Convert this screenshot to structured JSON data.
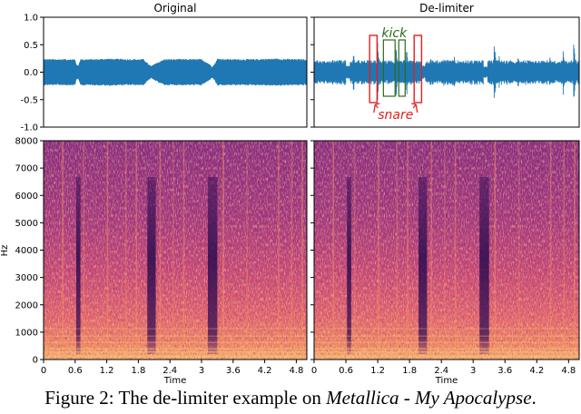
{
  "chart_data": [
    {
      "type": "line",
      "panel": "waveform-original",
      "title": "Original",
      "ylim": [
        -1.0,
        1.0
      ],
      "yticks": [
        "1.0",
        "0.5",
        "0.0",
        "-0.5",
        "-1.0"
      ],
      "ytick_values": [
        1.0,
        0.5,
        0.0,
        -0.5,
        -1.0
      ],
      "xlim": [
        0,
        5.0
      ],
      "series_color": "#1f77b4",
      "envelope": {
        "x": [
          0,
          0.6,
          0.62,
          0.66,
          0.7,
          1.0,
          1.2,
          1.6,
          1.9,
          2.0,
          2.05,
          2.1,
          2.3,
          2.6,
          3.0,
          3.15,
          3.2,
          3.25,
          3.3,
          3.6,
          4.0,
          4.4,
          4.8,
          5.0
        ],
        "upper": [
          0.24,
          0.24,
          0.14,
          0.12,
          0.24,
          0.24,
          0.25,
          0.24,
          0.24,
          0.14,
          0.11,
          0.15,
          0.24,
          0.24,
          0.24,
          0.15,
          0.1,
          0.15,
          0.25,
          0.24,
          0.24,
          0.25,
          0.24,
          0.24
        ],
        "lower": [
          -0.24,
          -0.24,
          -0.14,
          -0.12,
          -0.24,
          -0.24,
          -0.25,
          -0.24,
          -0.24,
          -0.14,
          -0.11,
          -0.15,
          -0.24,
          -0.24,
          -0.24,
          -0.15,
          -0.1,
          -0.15,
          -0.25,
          -0.24,
          -0.24,
          -0.25,
          -0.24,
          -0.24
        ]
      }
    },
    {
      "type": "line",
      "panel": "waveform-delimiter",
      "title": "De-limiter",
      "ylim": [
        -1.0,
        1.0
      ],
      "xlim": [
        0,
        5.0
      ],
      "series_color": "#1f77b4",
      "baseline_amplitude": 0.2,
      "transients": [
        {
          "x": 0.35,
          "amp": 0.3
        },
        {
          "x": 0.75,
          "amp": 0.3
        },
        {
          "x": 1.2,
          "amp": 0.58
        },
        {
          "x": 1.3,
          "amp": 0.25
        },
        {
          "x": 1.55,
          "amp": 0.42
        },
        {
          "x": 1.75,
          "amp": 0.44
        },
        {
          "x": 2.2,
          "amp": 0.3
        },
        {
          "x": 2.45,
          "amp": 0.28
        },
        {
          "x": 2.65,
          "amp": 0.32
        },
        {
          "x": 3.4,
          "amp": 0.58
        },
        {
          "x": 3.5,
          "amp": 0.3
        },
        {
          "x": 3.85,
          "amp": 0.3
        },
        {
          "x": 4.45,
          "amp": 0.3
        },
        {
          "x": 4.7,
          "amp": 0.38
        },
        {
          "x": 4.9,
          "amp": 0.55
        }
      ],
      "dips": [
        0.64,
        2.06,
        3.23
      ],
      "annotations": {
        "kick_label": "kick",
        "snare_label": "snare",
        "kick_color": "#2e6b1a",
        "snare_color": "#e02020",
        "snare_boxes": [
          [
            1.15,
            1.29
          ],
          [
            1.99,
            2.13
          ]
        ],
        "kick_boxes": [
          [
            1.41,
            1.63
          ],
          [
            1.7,
            1.82
          ]
        ]
      }
    },
    {
      "type": "heatmap",
      "panel": "spectrogram-original",
      "ylabel": "Hz",
      "xlabel": "Time",
      "ylim": [
        0,
        8000
      ],
      "yticks": [
        "0",
        "1000",
        "2000",
        "3000",
        "4000",
        "5000",
        "6000",
        "7000",
        "8000"
      ],
      "ytick_values": [
        0,
        1000,
        2000,
        3000,
        4000,
        5000,
        6000,
        7000,
        8000
      ],
      "xticks": [
        "0",
        "0.6",
        "1.2",
        "1.8",
        "2.4",
        "3",
        "3.6",
        "4.2",
        "4.8"
      ],
      "xtick_values": [
        0,
        0.6,
        1.2,
        1.8,
        2.4,
        3,
        3.6,
        4.2,
        4.8
      ],
      "xlim": [
        0,
        5.0
      ],
      "dark_columns": [
        [
          0.62,
          0.7
        ],
        [
          1.97,
          2.13
        ],
        [
          3.12,
          3.3
        ]
      ],
      "colors": {
        "low": "#2a0c4e",
        "mid": "#b5367a",
        "high": "#fcaa60"
      }
    },
    {
      "type": "heatmap",
      "panel": "spectrogram-delimiter",
      "xlabel": "Time",
      "ylim": [
        0,
        8000
      ],
      "xticks": [
        "0",
        "0.6",
        "1.2",
        "1.8",
        "2.4",
        "3",
        "3.6",
        "4.2",
        "4.8"
      ],
      "xtick_values": [
        0,
        0.6,
        1.2,
        1.8,
        2.4,
        3,
        3.6,
        4.2,
        4.8
      ],
      "xlim": [
        0,
        5.0
      ],
      "dark_columns": [
        [
          0.62,
          0.7
        ],
        [
          1.97,
          2.13
        ],
        [
          3.12,
          3.3
        ]
      ],
      "colors": {
        "low": "#2a0c4e",
        "mid": "#b5367a",
        "high": "#fcaa60"
      }
    }
  ],
  "caption": {
    "prefix": "Figure 2: The de-limiter example on ",
    "italic": "Metallica - My Apocalypse",
    "suffix": "."
  }
}
